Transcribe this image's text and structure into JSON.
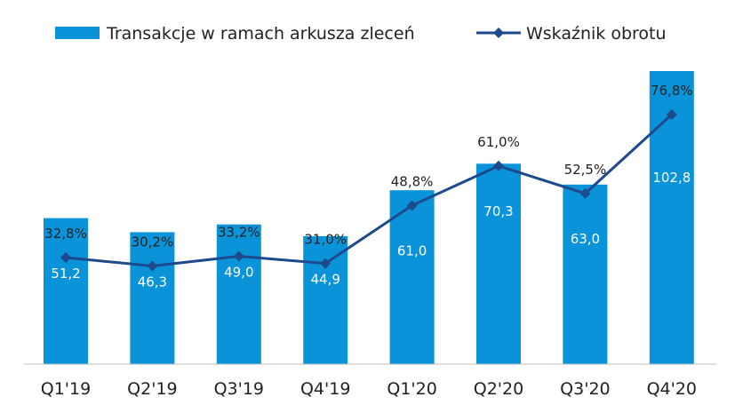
{
  "chart_data": {
    "type": "bar",
    "categories": [
      "Q1'19",
      "Q2'19",
      "Q3'19",
      "Q4'19",
      "Q1'20",
      "Q2'20",
      "Q3'20",
      "Q4'20"
    ],
    "series": [
      {
        "name": "Transakcje w ramach arkusza zleceń",
        "type": "bar",
        "values": [
          51.2,
          46.3,
          49.0,
          44.9,
          61.0,
          70.3,
          63.0,
          102.8
        ],
        "labels": [
          "51,2",
          "46,3",
          "49,0",
          "44,9",
          "61,0",
          "70,3",
          "63,0",
          "102,8"
        ],
        "color": "#0a93d8"
      },
      {
        "name": "Wskaźnik obrotu",
        "type": "line",
        "values": [
          32.8,
          30.2,
          33.2,
          31.0,
          48.8,
          61.0,
          52.5,
          76.8
        ],
        "labels": [
          "32,8%",
          "30,2%",
          "33,2%",
          "31,0%",
          "48,8%",
          "61,0%",
          "52,5%",
          "76,8%"
        ],
        "color": "#1c4a8c",
        "marker": "diamond"
      }
    ],
    "legend": "top",
    "grid": false,
    "bar_ylim": [
      0,
      102.8
    ],
    "line_ylim": [
      0,
      76.8
    ]
  }
}
